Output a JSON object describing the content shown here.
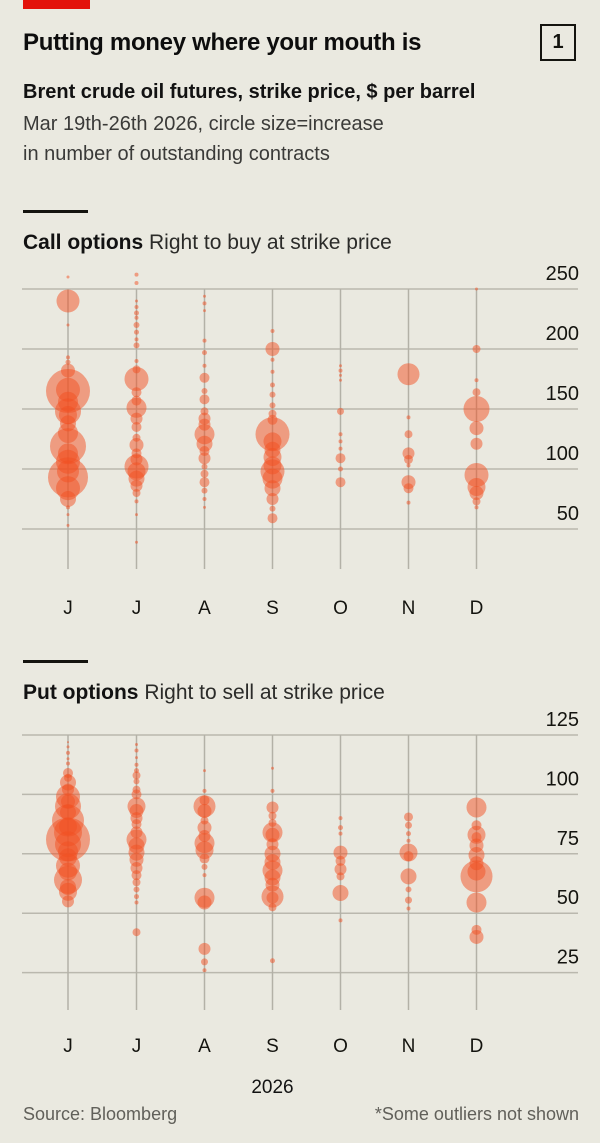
{
  "colors": {
    "background": "#eae9e0",
    "accent_red": "#e3120b",
    "bubble": "rgba(242,80,34,0.5)",
    "grid_h": "#bab8ae",
    "grid_v": "#b3b1a7",
    "text": "#14140f",
    "muted": "#61605a"
  },
  "header": {
    "title": "Putting money where your mouth is",
    "figure_number": "1",
    "subtitle": "Brent crude oil futures, strike price, $ per barrel",
    "description_line1": "Mar 19th-26th 2026, circle size=increase",
    "description_line2": "in number of outstanding contracts"
  },
  "year_label": "2026",
  "footer": {
    "source": "Source: Bloomberg",
    "note": "*Some outliers not shown"
  },
  "chart_data": [
    {
      "type": "scatter",
      "subtype": "bubble-strip",
      "title": "Call options",
      "subtitle": "Right to buy at strike price",
      "x_categories": [
        "J",
        "J",
        "A",
        "S",
        "O",
        "N",
        "D"
      ],
      "x_meaning": "Jun-Dec 2026 contract expiry months",
      "y_ticks": [
        250,
        200,
        150,
        100,
        50
      ],
      "y_range": [
        30,
        265
      ],
      "ylabel": "Strike price, $ per barrel",
      "grid": true,
      "legend": "none",
      "bubble_size_meaning": "increase in number of outstanding contracts (radius px)",
      "series": [
        {
          "month": "Jun",
          "points": [
            [
              260,
              1.5
            ],
            [
              240,
              11.5
            ],
            [
              220,
              1.5
            ],
            [
              193,
              2
            ],
            [
              189,
              2.5
            ],
            [
              182,
              7
            ],
            [
              166,
              12
            ],
            [
              165,
              22
            ],
            [
              156,
              10
            ],
            [
              148,
              13
            ],
            [
              145,
              9
            ],
            [
              138,
              8
            ],
            [
              130,
              10
            ],
            [
              119,
              18
            ],
            [
              113,
              10
            ],
            [
              106,
              12
            ],
            [
              98,
              11
            ],
            [
              93,
              20
            ],
            [
              84,
              12
            ],
            [
              75,
              8
            ],
            [
              68,
              2
            ],
            [
              62,
              1.5
            ],
            [
              53,
              1.5
            ]
          ]
        },
        {
          "month": "Jul",
          "points": [
            [
              262,
              2
            ],
            [
              255,
              2
            ],
            [
              240,
              1.5
            ],
            [
              235,
              2
            ],
            [
              230,
              2.5
            ],
            [
              226,
              2
            ],
            [
              220,
              3
            ],
            [
              214,
              2.5
            ],
            [
              208,
              2
            ],
            [
              203,
              3
            ],
            [
              190,
              2
            ],
            [
              183,
              4
            ],
            [
              175,
              12
            ],
            [
              164,
              5
            ],
            [
              157,
              5
            ],
            [
              151,
              10
            ],
            [
              142,
              6
            ],
            [
              135,
              5
            ],
            [
              126,
              4
            ],
            [
              120,
              7
            ],
            [
              113,
              5
            ],
            [
              108,
              6
            ],
            [
              102,
              12
            ],
            [
              98,
              9
            ],
            [
              92,
              8
            ],
            [
              86,
              6
            ],
            [
              80,
              4
            ],
            [
              73,
              2
            ],
            [
              62,
              1.5
            ],
            [
              39,
              1.5
            ]
          ]
        },
        {
          "month": "Aug",
          "points": [
            [
              244,
              1.5
            ],
            [
              238,
              2
            ],
            [
              232,
              1.5
            ],
            [
              207,
              2
            ],
            [
              197,
              2.5
            ],
            [
              186,
              2
            ],
            [
              176,
              5
            ],
            [
              165,
              3
            ],
            [
              158,
              5
            ],
            [
              148,
              4
            ],
            [
              142,
              6
            ],
            [
              137,
              6
            ],
            [
              129,
              10
            ],
            [
              121,
              8
            ],
            [
              115,
              5
            ],
            [
              109,
              6
            ],
            [
              102,
              3
            ],
            [
              96,
              4
            ],
            [
              89,
              5
            ],
            [
              82,
              3
            ],
            [
              75,
              2
            ],
            [
              68,
              1.5
            ]
          ]
        },
        {
          "month": "Sep",
          "points": [
            [
              215,
              2
            ],
            [
              200,
              7
            ],
            [
              191,
              2
            ],
            [
              181,
              2
            ],
            [
              170,
              2.5
            ],
            [
              162,
              3
            ],
            [
              153,
              3
            ],
            [
              146,
              4
            ],
            [
              141,
              5
            ],
            [
              129,
              17
            ],
            [
              123,
              9
            ],
            [
              116,
              8
            ],
            [
              110,
              9
            ],
            [
              103,
              9
            ],
            [
              98,
              12
            ],
            [
              92,
              10
            ],
            [
              84,
              8
            ],
            [
              75,
              6
            ],
            [
              67,
              3
            ],
            [
              59,
              5
            ]
          ]
        },
        {
          "month": "Oct",
          "points": [
            [
              186,
              1.5
            ],
            [
              182,
              2
            ],
            [
              178,
              1.5
            ],
            [
              174,
              1.5
            ],
            [
              148,
              3.5
            ],
            [
              129,
              2
            ],
            [
              123,
              2
            ],
            [
              117,
              2
            ],
            [
              109,
              5
            ],
            [
              100,
              2.5
            ],
            [
              89,
              5
            ]
          ]
        },
        {
          "month": "Nov",
          "points": [
            [
              179,
              11
            ],
            [
              143,
              2
            ],
            [
              129,
              4
            ],
            [
              113,
              6
            ],
            [
              108,
              4.5
            ],
            [
              103,
              2
            ],
            [
              89,
              7
            ],
            [
              84,
              5
            ],
            [
              72,
              2
            ]
          ]
        },
        {
          "month": "Dec",
          "points": [
            [
              250,
              1.5
            ],
            [
              200,
              4
            ],
            [
              174,
              2
            ],
            [
              164,
              4
            ],
            [
              150,
              13
            ],
            [
              134,
              7
            ],
            [
              121,
              6
            ],
            [
              95,
              12
            ],
            [
              85,
              9
            ],
            [
              80,
              7
            ],
            [
              73,
              4
            ],
            [
              68,
              2
            ]
          ]
        }
      ]
    },
    {
      "type": "scatter",
      "subtype": "bubble-strip",
      "title": "Put options",
      "subtitle": "Right to sell at strike price",
      "x_categories": [
        "J",
        "J",
        "A",
        "S",
        "O",
        "N",
        "D"
      ],
      "x_meaning": "Jun-Dec 2026 contract expiry months",
      "y_ticks": [
        125,
        100,
        75,
        50,
        25
      ],
      "y_range": [
        20,
        128
      ],
      "ylabel": "Strike price, $ per barrel",
      "grid": true,
      "legend": "none",
      "bubble_size_meaning": "increase in number of outstanding contracts (radius px)",
      "series": [
        {
          "month": "Jun",
          "points": [
            [
              122,
              1
            ],
            [
              120,
              1.5
            ],
            [
              117.5,
              2
            ],
            [
              115,
              1.5
            ],
            [
              113,
              2
            ],
            [
              109,
              5
            ],
            [
              107,
              4
            ],
            [
              105,
              8
            ],
            [
              102,
              6
            ],
            [
              99,
              12
            ],
            [
              97,
              7
            ],
            [
              95,
              13
            ],
            [
              92.5,
              8
            ],
            [
              89,
              16
            ],
            [
              86.5,
              9
            ],
            [
              84,
              14
            ],
            [
              81,
              22
            ],
            [
              79,
              13
            ],
            [
              76,
              10
            ],
            [
              73.5,
              9
            ],
            [
              70,
              12
            ],
            [
              67.5,
              9
            ],
            [
              64,
              14
            ],
            [
              61,
              8
            ],
            [
              59,
              9
            ],
            [
              55,
              6
            ]
          ]
        },
        {
          "month": "Jul",
          "points": [
            [
              121,
              1.5
            ],
            [
              118.5,
              2
            ],
            [
              115.5,
              1.5
            ],
            [
              112.5,
              2
            ],
            [
              110,
              2.5
            ],
            [
              108,
              4
            ],
            [
              105.5,
              3
            ],
            [
              102,
              4
            ],
            [
              100,
              5
            ],
            [
              95,
              9
            ],
            [
              93,
              7
            ],
            [
              90,
              6
            ],
            [
              87.5,
              5
            ],
            [
              84,
              6
            ],
            [
              81,
              10
            ],
            [
              78.5,
              8
            ],
            [
              75.5,
              8
            ],
            [
              72.5,
              7
            ],
            [
              69,
              6
            ],
            [
              66,
              5
            ],
            [
              63,
              4
            ],
            [
              60,
              3
            ],
            [
              57,
              2.5
            ],
            [
              54.5,
              2
            ],
            [
              42,
              4
            ]
          ]
        },
        {
          "month": "Aug",
          "points": [
            [
              110,
              1.5
            ],
            [
              101.5,
              2
            ],
            [
              97.5,
              5
            ],
            [
              95,
              11
            ],
            [
              93,
              7
            ],
            [
              89,
              4
            ],
            [
              86,
              7
            ],
            [
              82.5,
              6
            ],
            [
              79.5,
              10
            ],
            [
              76.5,
              9
            ],
            [
              73,
              5
            ],
            [
              69.5,
              3
            ],
            [
              66,
              2
            ],
            [
              56.5,
              10
            ],
            [
              54.5,
              7
            ],
            [
              35,
              6
            ],
            [
              29.5,
              3.5
            ],
            [
              26,
              2
            ]
          ]
        },
        {
          "month": "Sep",
          "points": [
            [
              111,
              1.5
            ],
            [
              101.5,
              2
            ],
            [
              94.5,
              6
            ],
            [
              91,
              4
            ],
            [
              88,
              4
            ],
            [
              84,
              10
            ],
            [
              83,
              7
            ],
            [
              79,
              6
            ],
            [
              75,
              8
            ],
            [
              71.5,
              8
            ],
            [
              68,
              10
            ],
            [
              65,
              8
            ],
            [
              62,
              7
            ],
            [
              57,
              11
            ],
            [
              56.5,
              6
            ],
            [
              52.5,
              4
            ],
            [
              30,
              2.5
            ]
          ]
        },
        {
          "month": "Oct",
          "points": [
            [
              90,
              2
            ],
            [
              86,
              2.5
            ],
            [
              83.5,
              2
            ],
            [
              75.5,
              7
            ],
            [
              72,
              5
            ],
            [
              68.5,
              6
            ],
            [
              65.5,
              4
            ],
            [
              58.5,
              8
            ],
            [
              47,
              2
            ]
          ]
        },
        {
          "month": "Nov",
          "points": [
            [
              90.5,
              4.5
            ],
            [
              87,
              3.5
            ],
            [
              83.5,
              2.5
            ],
            [
              80.5,
              2
            ],
            [
              75.5,
              9
            ],
            [
              74,
              5
            ],
            [
              65.5,
              8
            ],
            [
              60,
              3
            ],
            [
              55.5,
              3.5
            ],
            [
              52,
              2
            ]
          ]
        },
        {
          "month": "Dec",
          "points": [
            [
              94.5,
              10
            ],
            [
              87,
              5
            ],
            [
              83,
              9
            ],
            [
              82,
              5
            ],
            [
              78.5,
              7
            ],
            [
              74.5,
              8
            ],
            [
              71,
              7
            ],
            [
              67.5,
              9
            ],
            [
              65.5,
              16
            ],
            [
              54.5,
              10
            ],
            [
              43,
              5
            ],
            [
              40,
              7
            ]
          ]
        }
      ]
    }
  ]
}
